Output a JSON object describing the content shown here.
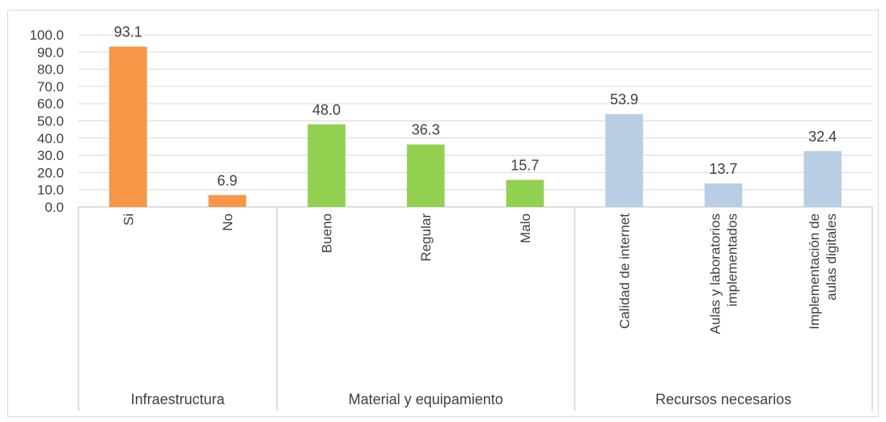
{
  "chart_data": {
    "type": "bar",
    "ylim": [
      0,
      100
    ],
    "yticks": [
      "0.0",
      "10.0",
      "20.0",
      "30.0",
      "40.0",
      "50.0",
      "60.0",
      "70.0",
      "80.0",
      "90.0",
      "100.0"
    ],
    "grid": true,
    "legend": "none",
    "groups": [
      {
        "name": "Infraestructura",
        "color": "#F79646",
        "bars": [
          {
            "category": "Si",
            "value": 93.1,
            "label": "93.1"
          },
          {
            "category": "No",
            "value": 6.9,
            "label": "6.9"
          }
        ]
      },
      {
        "name": "Material y equipamiento",
        "color": "#92D050",
        "bars": [
          {
            "category": "Bueno",
            "value": 48.0,
            "label": "48.0"
          },
          {
            "category": "Regular",
            "value": 36.3,
            "label": "36.3"
          },
          {
            "category": "Malo",
            "value": 15.7,
            "label": "15.7"
          }
        ]
      },
      {
        "name": "Recursos necesarios",
        "color": "#B9CDE5",
        "bars": [
          {
            "category": [
              "Calidad de internet"
            ],
            "value": 53.9,
            "label": "53.9"
          },
          {
            "category": [
              "Aulas y laboratorios",
              "implementados"
            ],
            "value": 13.7,
            "label": "13.7"
          },
          {
            "category": [
              "Implementación de",
              "aulas digitales"
            ],
            "value": 32.4,
            "label": "32.4"
          }
        ]
      }
    ]
  }
}
